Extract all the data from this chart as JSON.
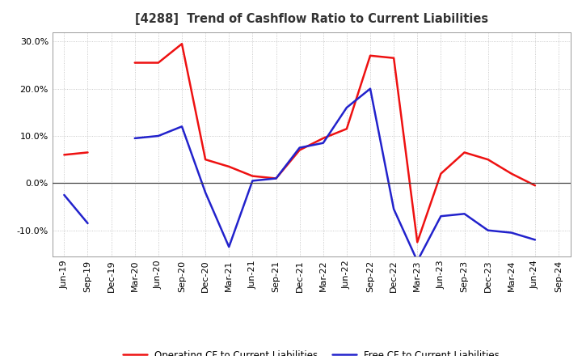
{
  "title": "[4288]  Trend of Cashflow Ratio to Current Liabilities",
  "x_labels": [
    "Jun-19",
    "Sep-19",
    "Dec-19",
    "Mar-20",
    "Jun-20",
    "Sep-20",
    "Dec-20",
    "Mar-21",
    "Jun-21",
    "Sep-21",
    "Dec-21",
    "Mar-22",
    "Jun-22",
    "Sep-22",
    "Dec-22",
    "Mar-23",
    "Jun-23",
    "Sep-23",
    "Dec-23",
    "Mar-24",
    "Jun-24",
    "Sep-24"
  ],
  "operating_cf": [
    6.0,
    6.5,
    null,
    25.5,
    25.5,
    29.5,
    5.0,
    3.5,
    1.5,
    1.0,
    7.0,
    9.5,
    11.5,
    27.0,
    26.5,
    -12.5,
    2.0,
    6.5,
    5.0,
    2.0,
    -0.5,
    null
  ],
  "free_cf": [
    -2.5,
    -8.5,
    null,
    9.5,
    10.0,
    12.0,
    -2.0,
    -13.5,
    0.5,
    1.0,
    7.5,
    8.5,
    16.0,
    20.0,
    -5.5,
    -16.5,
    -7.0,
    -6.5,
    -10.0,
    -10.5,
    -12.0,
    null
  ],
  "ylim": [
    -15.5,
    32.0
  ],
  "yticks": [
    -10.0,
    0.0,
    10.0,
    20.0,
    30.0
  ],
  "operating_color": "#EE1111",
  "free_color": "#2222CC",
  "background_color": "#FFFFFF",
  "grid_color": "#BBBBBB",
  "zero_line_color": "#444444",
  "legend_operating": "Operating CF to Current Liabilities",
  "legend_free": "Free CF to Current Liabilities",
  "title_color": "#333333"
}
